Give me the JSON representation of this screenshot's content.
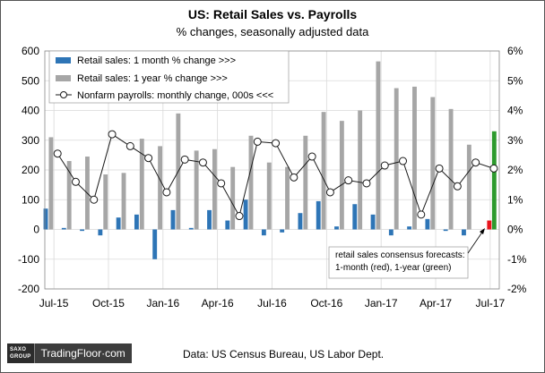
{
  "title": "US: Retail Sales vs. Payrolls",
  "subtitle": "% changes, seasonally adjusted data",
  "source": "Data: US Census Bureau,  US Labor Dept.",
  "logo": {
    "line1": "SAXO",
    "line2": "GROUP",
    "brand": "TradingFloor·com"
  },
  "colors": {
    "monthly": "#2e75b6",
    "yearly": "#a6a6a6",
    "payrolls": "#1a1a1a",
    "forecast_month": "#e8141c",
    "forecast_year": "#2d9a2d"
  },
  "chart_data": {
    "type": "bar",
    "x": [
      "2015-07",
      "2015-08",
      "2015-09",
      "2015-10",
      "2015-11",
      "2015-12",
      "2016-01",
      "2016-02",
      "2016-03",
      "2016-04",
      "2016-05",
      "2016-06",
      "2016-07",
      "2016-08",
      "2016-09",
      "2016-10",
      "2016-11",
      "2016-12",
      "2017-01",
      "2017-02",
      "2017-03",
      "2017-04",
      "2017-05",
      "2017-06",
      "2017-07"
    ],
    "x_tick_labels": [
      {
        "x": "2015-07",
        "label": "Jul-15"
      },
      {
        "x": "2015-10",
        "label": "Oct-15"
      },
      {
        "x": "2016-01",
        "label": "Jan-16"
      },
      {
        "x": "2016-04",
        "label": "Apr-16"
      },
      {
        "x": "2016-07",
        "label": "Jul-16"
      },
      {
        "x": "2016-10",
        "label": "Oct-16"
      },
      {
        "x": "2017-01",
        "label": "Jan-17"
      },
      {
        "x": "2017-04",
        "label": "Apr-17"
      },
      {
        "x": "2017-07",
        "label": "Jul-17"
      }
    ],
    "left_axis": {
      "ticks": [
        "600",
        "500",
        "400",
        "300",
        "200",
        "100",
        "0",
        "-100",
        "-200"
      ],
      "ylim": [
        -200,
        600
      ]
    },
    "right_axis": {
      "ticks": [
        "6%",
        "5%",
        "4%",
        "3%",
        "2%",
        "1%",
        "0%",
        "-1%",
        "-2%"
      ],
      "ylim": [
        -2,
        6
      ]
    },
    "series": [
      {
        "name": "Retail sales: 1 month % change >>>",
        "type": "bar",
        "axis": "right",
        "values": [
          0.7,
          0.05,
          -0.05,
          -0.2,
          0.4,
          0.5,
          -1.0,
          0.65,
          0.05,
          0.65,
          0.3,
          1.0,
          -0.2,
          -0.1,
          0.55,
          0.95,
          0.1,
          0.85,
          0.5,
          -0.2,
          0.1,
          0.35,
          -0.05,
          -0.2,
          null
        ]
      },
      {
        "name": "Retail sales: 1 year % change >>>",
        "type": "bar",
        "axis": "right",
        "values": [
          3.1,
          2.3,
          2.45,
          1.85,
          1.9,
          3.05,
          2.8,
          3.9,
          2.65,
          2.7,
          2.1,
          3.15,
          2.25,
          2.1,
          3.15,
          3.95,
          3.65,
          4.0,
          5.65,
          4.75,
          4.8,
          4.45,
          4.05,
          2.85,
          null
        ]
      },
      {
        "name": "Nonfarm payrolls: monthly change, 000s <<<",
        "type": "line",
        "axis": "left",
        "values": [
          255,
          160,
          100,
          320,
          280,
          240,
          125,
          235,
          225,
          155,
          45,
          295,
          290,
          175,
          245,
          125,
          165,
          155,
          215,
          230,
          50,
          205,
          145,
          225,
          205
        ]
      },
      {
        "name": "retail sales consensus forecast: 1-month",
        "type": "bar",
        "axis": "right",
        "color": "forecast_month",
        "points": [
          {
            "x": "2017-07",
            "y": 0.3
          }
        ]
      },
      {
        "name": "retail sales consensus forecast: 1-year",
        "type": "bar",
        "axis": "right",
        "color": "forecast_year",
        "points": [
          {
            "x": "2017-07",
            "y": 3.3
          }
        ]
      }
    ],
    "legend_placement": "top-left",
    "annotation": {
      "line1": "retail sales consensus forecasts:",
      "line2": "1-month (red), 1-year (green)"
    },
    "grid": true
  }
}
